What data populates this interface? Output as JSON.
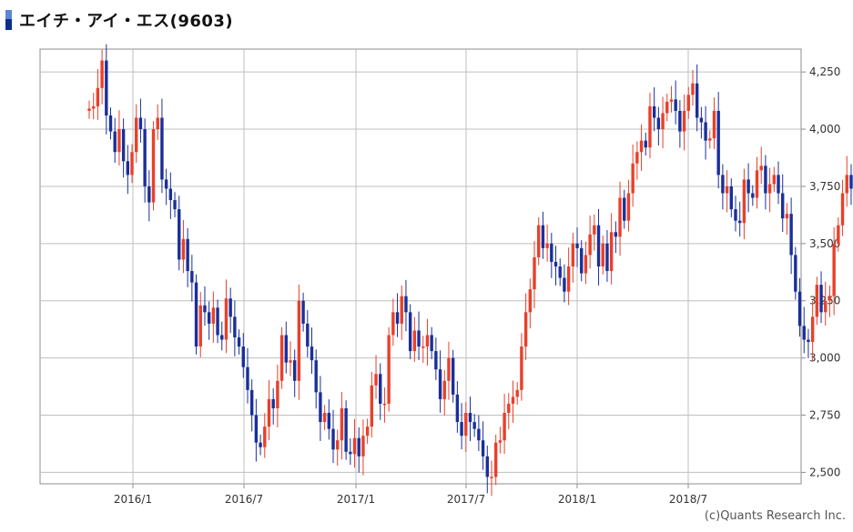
{
  "header": {
    "title": "エイチ・アイ・エス(9603)"
  },
  "footer": {
    "copyright": "(c)Quants Research Inc."
  },
  "colors": {
    "up": "#e8402a",
    "down": "#1a2f9a",
    "grid": "#bfbfbf",
    "frame": "#8c8c8c"
  },
  "chart_data": {
    "type": "candlestick",
    "title": "エイチ・アイ・エス(9603)",
    "xlabel": "",
    "ylabel": "",
    "ylim": [
      2450,
      4350
    ],
    "y_ticks": [
      2500,
      2750,
      3000,
      3250,
      3500,
      3750,
      4000,
      4250
    ],
    "y_tick_labels": [
      "2,500",
      "2,750",
      "3,000",
      "3,250",
      "3,500",
      "3,750",
      "4,000",
      "4,250"
    ],
    "x_ticks": [
      "2016/1",
      "2016/7",
      "2017/1",
      "2017/7",
      "2018/1",
      "2018/7"
    ],
    "grid": true,
    "approx_weekly_close": [
      4090,
      4100,
      4180,
      4300,
      4060,
      3990,
      3900,
      4000,
      3860,
      3800,
      3900,
      4050,
      4000,
      3750,
      3680,
      4000,
      4050,
      3780,
      3740,
      3690,
      3650,
      3430,
      3520,
      3380,
      3330,
      3050,
      3230,
      3200,
      3150,
      3220,
      3100,
      3080,
      3260,
      3180,
      3090,
      3050,
      2960,
      2860,
      2750,
      2630,
      2610,
      2700,
      2820,
      2780,
      2900,
      3100,
      2980,
      2990,
      2900,
      3250,
      3150,
      3050,
      2990,
      2850,
      2720,
      2760,
      2690,
      2600,
      2640,
      2780,
      2590,
      2580,
      2650,
      2570,
      2660,
      2700,
      2880,
      2930,
      2800,
      2800,
      3100,
      3200,
      3150,
      3270,
      3200,
      3030,
      3120,
      3050,
      3050,
      3100,
      3030,
      2950,
      2820,
      2900,
      3000,
      2840,
      2720,
      2660,
      2760,
      2720,
      2690,
      2640,
      2570,
      2480,
      2480,
      2630,
      2640,
      2760,
      2800,
      2830,
      2860,
      3050,
      3200,
      3300,
      3440,
      3580,
      3480,
      3500,
      3420,
      3400,
      3350,
      3290,
      3400,
      3500,
      3480,
      3370,
      3450,
      3540,
      3580,
      3400,
      3500,
      3380,
      3550,
      3530,
      3700,
      3600,
      3720,
      3850,
      3900,
      3950,
      3920,
      4100,
      4050,
      4000,
      4070,
      4120,
      4130,
      4080,
      3990,
      4080,
      4150,
      4200,
      4050,
      4030,
      3950,
      3960,
      4080,
      3800,
      3720,
      3750,
      3650,
      3600,
      3590,
      3780,
      3720,
      3700,
      3820,
      3840,
      3720,
      3760,
      3800,
      3720,
      3610,
      3630,
      3450,
      3290,
      3140,
      3080,
      3070,
      3180,
      3320,
      3200,
      3250,
      3270,
      3500,
      3580,
      3720,
      3800,
      3740,
      3650,
      3680,
      3580,
      3710
    ]
  }
}
